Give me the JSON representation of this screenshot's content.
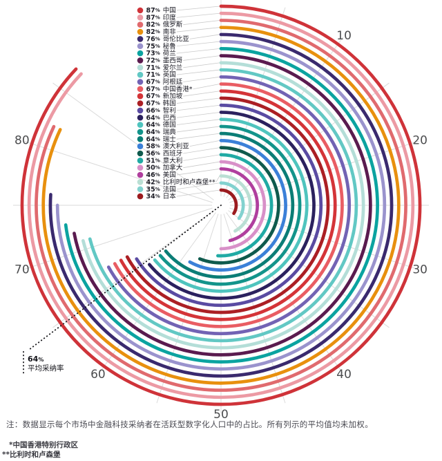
{
  "chart_data": {
    "type": "radial-bar",
    "unit": "%",
    "angle_per_unit_deg": 3.6,
    "rotation": "clockwise-from-top",
    "axis_ticks": [
      10,
      20,
      30,
      40,
      50,
      60,
      70,
      80
    ],
    "spoke_interval": 5,
    "spoke_max": 85,
    "series": [
      {
        "label": "中国",
        "value": 87,
        "color": "#cf3339"
      },
      {
        "label": "印度",
        "value": 87,
        "color": "#ec9aa4"
      },
      {
        "label": "俄罗斯",
        "value": 82,
        "color": "#e06a6e"
      },
      {
        "label": "南非",
        "value": 82,
        "color": "#e8900e"
      },
      {
        "label": "哥伦比亚",
        "value": 76,
        "color": "#3a2a6e"
      },
      {
        "label": "秘鲁",
        "value": 75,
        "color": "#9a93cd"
      },
      {
        "label": "荷兰",
        "value": 73,
        "color": "#0ba3a0"
      },
      {
        "label": "墨西哥",
        "value": 72,
        "color": "#5a1b4f"
      },
      {
        "label": "爱尔兰",
        "value": 71,
        "color": "#b4ded8"
      },
      {
        "label": "英国",
        "value": 71,
        "color": "#62c8c4"
      },
      {
        "label": "阿根廷",
        "value": 67,
        "color": "#7263b4"
      },
      {
        "label": "中国香港*",
        "value": 67,
        "color": "#e95d63"
      },
      {
        "label": "新加坡",
        "value": 67,
        "color": "#d43438"
      },
      {
        "label": "韩国",
        "value": 67,
        "color": "#ab1f24"
      },
      {
        "label": "智利",
        "value": 66,
        "color": "#5a4ba2"
      },
      {
        "label": "巴西",
        "value": 64,
        "color": "#2b215e"
      },
      {
        "label": "德国",
        "value": 64,
        "color": "#4fc4be"
      },
      {
        "label": "瑞典",
        "value": 64,
        "color": "#13948b"
      },
      {
        "label": "瑞士",
        "value": 64,
        "color": "#0b7d76"
      },
      {
        "label": "澳大利亚",
        "value": 58,
        "color": "#3b80d8"
      },
      {
        "label": "西班牙",
        "value": 56,
        "color": "#0f5a4d"
      },
      {
        "label": "意大利",
        "value": 51,
        "color": "#20aaa4"
      },
      {
        "label": "加拿大",
        "value": 50,
        "color": "#d890c8"
      },
      {
        "label": "美国",
        "value": 46,
        "color": "#b03f9e"
      },
      {
        "label": "比利时和卢森堡**",
        "value": 42,
        "color": "#badfd4"
      },
      {
        "label": "法国",
        "value": 35,
        "color": "#82d2cf"
      },
      {
        "label": "日本",
        "value": 34,
        "color": "#9b1b1f"
      }
    ],
    "average": {
      "value": 64,
      "unit": "%",
      "label": "平均采纳率"
    }
  },
  "notes": {
    "note": "注：数据显示每个市场中金融科技采纳者在活跃型数字化人口中的占比。所有列示的平均值均未加权。",
    "footnote_hongkong": "*中国香港特别行政区",
    "footnote_belgium": "**比利时和卢森堡"
  }
}
